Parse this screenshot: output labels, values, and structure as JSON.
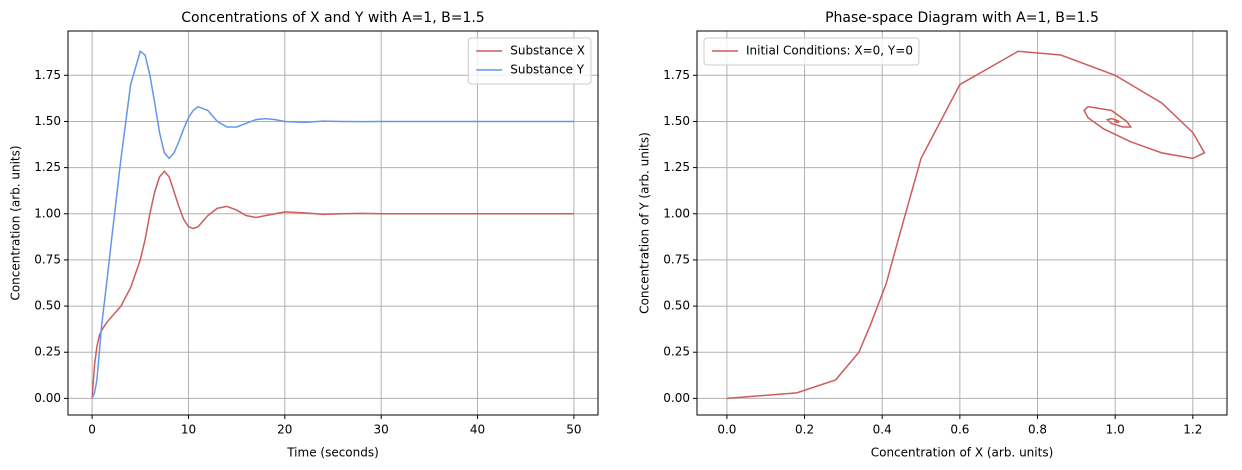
{
  "chart_data": [
    {
      "type": "line",
      "title": "Concentrations of X and Y with A=1, B=1.5",
      "xlabel": "Time (seconds)",
      "ylabel": "Concentration (arb. units)",
      "x": [
        0,
        0.25,
        0.5,
        0.75,
        1,
        1.5,
        2,
        3,
        4,
        5,
        5.5,
        6,
        6.5,
        7,
        7.5,
        8,
        8.5,
        9,
        9.5,
        10,
        10.5,
        11,
        12,
        13,
        14,
        15,
        16,
        17,
        18,
        19,
        20,
        22,
        24,
        26,
        28,
        30,
        35,
        40,
        45,
        50
      ],
      "series": [
        {
          "name": "Substance X",
          "color": "#cd5c5c",
          "values": [
            0,
            0.18,
            0.28,
            0.34,
            0.37,
            0.41,
            0.44,
            0.5,
            0.6,
            0.75,
            0.86,
            1.0,
            1.12,
            1.2,
            1.23,
            1.2,
            1.12,
            1.04,
            0.97,
            0.93,
            0.92,
            0.93,
            0.99,
            1.03,
            1.04,
            1.02,
            0.99,
            0.98,
            0.99,
            1.0,
            1.01,
            1.005,
            0.997,
            1.0,
            1.002,
            1.0,
            1.0,
            1.0,
            1.0,
            1.0
          ]
        },
        {
          "name": "Substance Y",
          "color": "#6495ed",
          "values": [
            0,
            0.03,
            0.1,
            0.25,
            0.4,
            0.62,
            0.85,
            1.3,
            1.7,
            1.88,
            1.86,
            1.75,
            1.6,
            1.44,
            1.33,
            1.3,
            1.33,
            1.39,
            1.46,
            1.52,
            1.56,
            1.58,
            1.56,
            1.5,
            1.47,
            1.47,
            1.49,
            1.51,
            1.515,
            1.51,
            1.5,
            1.495,
            1.502,
            1.5,
            1.499,
            1.5,
            1.5,
            1.5,
            1.5,
            1.5
          ]
        }
      ],
      "xlim": [
        -2.5,
        52.5
      ],
      "xticks": [
        0,
        10,
        20,
        30,
        40,
        50
      ],
      "ylim": [
        -0.09,
        1.99
      ],
      "yticks": [
        {
          "value": 0,
          "label": "0.00"
        },
        {
          "value": 0.25,
          "label": "0.25"
        },
        {
          "value": 0.5,
          "label": "0.50"
        },
        {
          "value": 0.75,
          "label": "0.75"
        },
        {
          "value": 1,
          "label": "1.00"
        },
        {
          "value": 1.25,
          "label": "1.25"
        },
        {
          "value": 1.5,
          "label": "1.50"
        },
        {
          "value": 1.75,
          "label": "1.75"
        }
      ],
      "grid": true,
      "legend": "upper-right"
    },
    {
      "type": "line",
      "title": "Phase-space Diagram with A=1, B=1.5",
      "xlabel": "Concentration of X (arb. units)",
      "ylabel": "Concentration of Y (arb. units)",
      "series": [
        {
          "name": "Initial Conditions: X=0, Y=0",
          "color": "#cd5c5c",
          "x": [
            0,
            0.18,
            0.28,
            0.34,
            0.37,
            0.41,
            0.44,
            0.5,
            0.6,
            0.75,
            0.86,
            1.0,
            1.12,
            1.2,
            1.23,
            1.2,
            1.12,
            1.04,
            0.97,
            0.93,
            0.92,
            0.93,
            0.99,
            1.03,
            1.04,
            1.02,
            0.99,
            0.98,
            0.99,
            1.0,
            1.01,
            1.005,
            0.997,
            1.0,
            1.002,
            1.0,
            1.0,
            1.0,
            1.0,
            1.0
          ],
          "values": [
            0,
            0.03,
            0.1,
            0.25,
            0.4,
            0.62,
            0.85,
            1.3,
            1.7,
            1.88,
            1.86,
            1.75,
            1.6,
            1.44,
            1.33,
            1.3,
            1.33,
            1.39,
            1.46,
            1.52,
            1.56,
            1.58,
            1.56,
            1.5,
            1.47,
            1.47,
            1.49,
            1.51,
            1.515,
            1.51,
            1.5,
            1.495,
            1.502,
            1.5,
            1.499,
            1.5,
            1.5,
            1.5,
            1.5,
            1.5
          ]
        }
      ],
      "xlim": [
        -0.077,
        1.288
      ],
      "xticks": [
        {
          "value": 0,
          "label": "0.0"
        },
        {
          "value": 0.2,
          "label": "0.2"
        },
        {
          "value": 0.4,
          "label": "0.4"
        },
        {
          "value": 0.6,
          "label": "0.6"
        },
        {
          "value": 0.8,
          "label": "0.8"
        },
        {
          "value": 1,
          "label": "1.0"
        },
        {
          "value": 1.2,
          "label": "1.2"
        }
      ],
      "ylim": [
        -0.09,
        1.99
      ],
      "yticks": [
        {
          "value": 0,
          "label": "0.00"
        },
        {
          "value": 0.25,
          "label": "0.25"
        },
        {
          "value": 0.5,
          "label": "0.50"
        },
        {
          "value": 0.75,
          "label": "0.75"
        },
        {
          "value": 1,
          "label": "1.00"
        },
        {
          "value": 1.25,
          "label": "1.25"
        },
        {
          "value": 1.5,
          "label": "1.50"
        },
        {
          "value": 1.75,
          "label": "1.75"
        }
      ],
      "grid": true,
      "legend": "upper-left"
    }
  ]
}
